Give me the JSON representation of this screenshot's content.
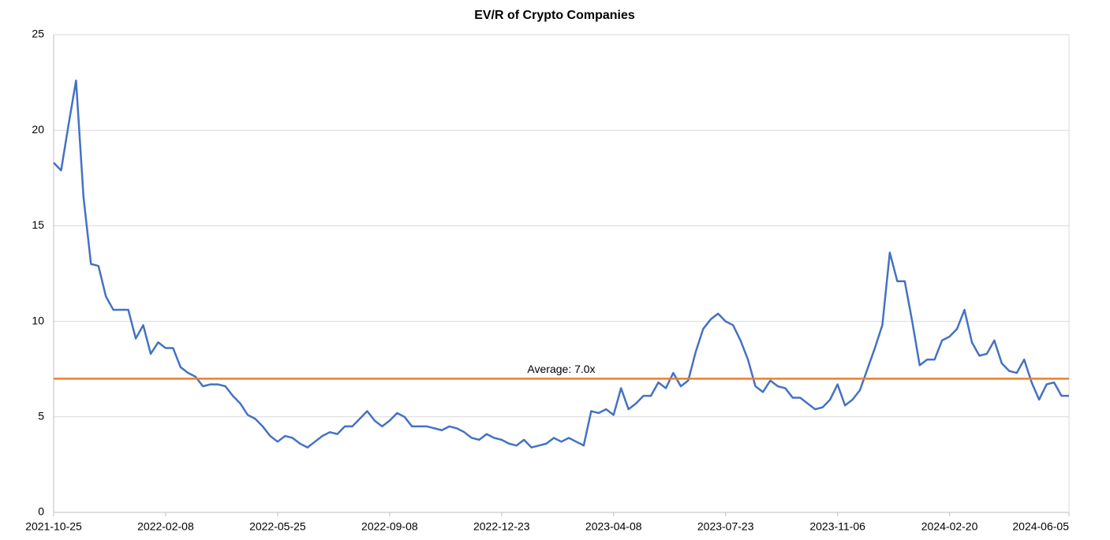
{
  "chart_data": {
    "type": "line",
    "title": "EV/R of Crypto Companies",
    "categories": [
      "2021-10-25",
      null,
      null,
      null,
      null,
      null,
      null,
      null,
      null,
      null,
      null,
      null,
      null,
      null,
      null,
      "2022-02-08",
      null,
      null,
      null,
      null,
      null,
      null,
      null,
      null,
      null,
      null,
      null,
      null,
      null,
      null,
      "2022-05-25",
      null,
      null,
      null,
      null,
      null,
      null,
      null,
      null,
      null,
      null,
      null,
      null,
      null,
      null,
      "2022-09-08",
      null,
      null,
      null,
      null,
      null,
      null,
      null,
      null,
      null,
      null,
      null,
      null,
      null,
      null,
      "2022-12-23",
      null,
      null,
      null,
      null,
      null,
      null,
      null,
      null,
      null,
      null,
      null,
      null,
      null,
      null,
      "2023-04-08",
      null,
      null,
      null,
      null,
      null,
      null,
      null,
      null,
      null,
      null,
      null,
      null,
      null,
      null,
      "2023-07-23",
      null,
      null,
      null,
      null,
      null,
      null,
      null,
      null,
      null,
      null,
      null,
      null,
      null,
      null,
      "2023-11-06",
      null,
      null,
      null,
      null,
      null,
      null,
      null,
      null,
      null,
      null,
      null,
      null,
      null,
      null,
      "2024-02-20",
      null,
      null,
      null,
      null,
      null,
      null,
      null,
      null,
      null,
      null,
      null,
      null,
      null,
      null,
      null,
      "2024-06-05"
    ],
    "series": [
      {
        "name": "EV/R",
        "color": "#4472c4",
        "values": [
          18.3,
          17.9,
          20.3,
          22.6,
          16.5,
          13.0,
          12.9,
          11.3,
          10.6,
          10.6,
          10.6,
          9.1,
          9.8,
          8.3,
          8.9,
          8.6,
          8.6,
          7.6,
          7.3,
          7.1,
          6.6,
          6.7,
          6.7,
          6.6,
          6.1,
          5.7,
          5.1,
          4.9,
          4.5,
          4.0,
          3.7,
          4.0,
          3.9,
          3.6,
          3.4,
          3.7,
          4.0,
          4.2,
          4.1,
          4.5,
          4.5,
          4.9,
          5.3,
          4.8,
          4.5,
          4.8,
          5.2,
          5.0,
          4.5,
          4.5,
          4.5,
          4.4,
          4.3,
          4.5,
          4.4,
          4.2,
          3.9,
          3.8,
          4.1,
          3.9,
          3.8,
          3.6,
          3.5,
          3.8,
          3.4,
          3.5,
          3.6,
          3.9,
          3.7,
          3.9,
          3.7,
          3.5,
          5.3,
          5.2,
          5.4,
          5.1,
          6.5,
          5.4,
          5.7,
          6.1,
          6.1,
          6.8,
          6.5,
          7.3,
          6.6,
          6.9,
          8.4,
          9.6,
          10.1,
          10.4,
          10.0,
          9.8,
          9.0,
          8.0,
          6.6,
          6.3,
          6.9,
          6.6,
          6.5,
          6.0,
          6.0,
          5.7,
          5.4,
          5.5,
          5.9,
          6.7,
          5.6,
          5.9,
          6.4,
          7.5,
          8.6,
          9.8,
          13.6,
          12.1,
          12.1,
          10.0,
          7.7,
          8.0,
          8.0,
          9.0,
          9.2,
          9.6,
          10.6,
          8.9,
          8.2,
          8.3,
          9.0,
          7.8,
          7.4,
          7.3,
          8.0,
          6.8,
          5.9,
          6.7,
          6.8,
          6.1,
          6.1
        ]
      }
    ],
    "average": {
      "value": 7.0,
      "label": "Average: 7.0x",
      "color": "#ed7d31"
    },
    "ylim": [
      0,
      25
    ],
    "yticks": [
      0,
      5,
      10,
      15,
      20,
      25
    ],
    "grid": true
  }
}
